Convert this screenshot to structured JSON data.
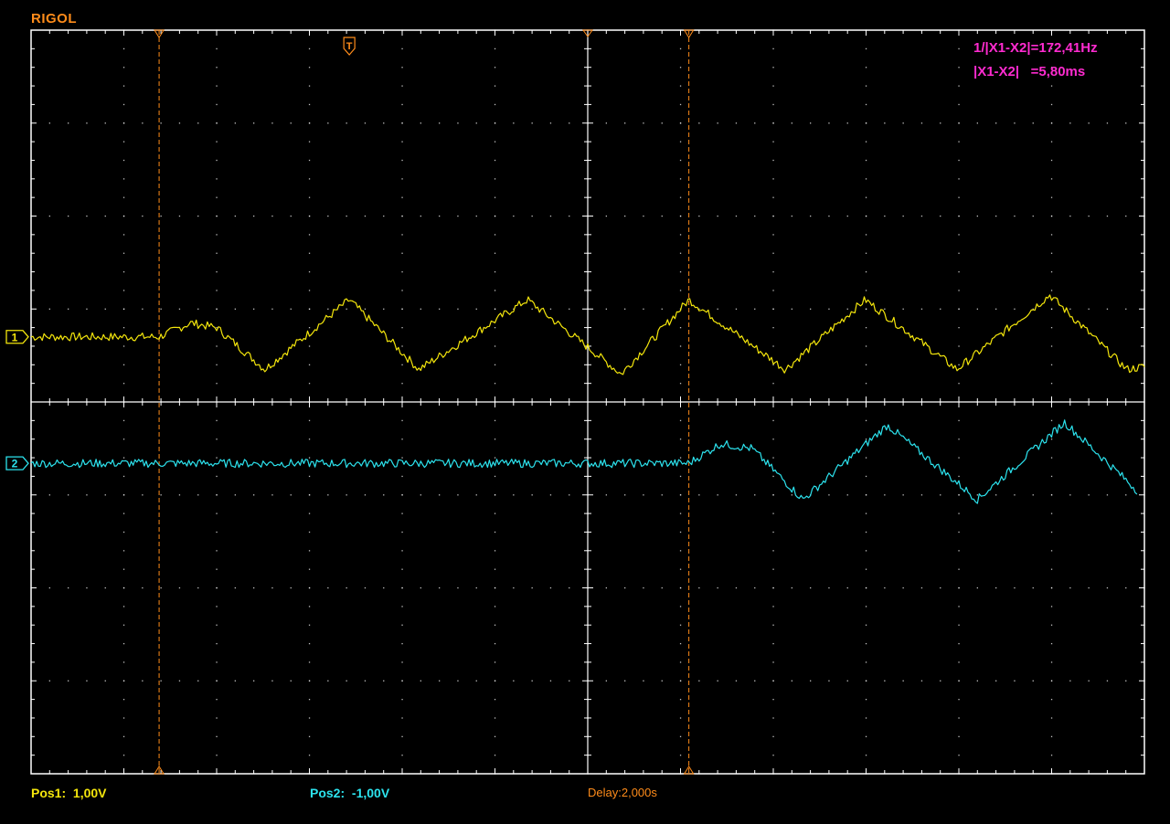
{
  "brand": "RIGOL",
  "readouts": {
    "frequency": "1/|X1-X2|=172,41Hz",
    "delta": "|X1-X2|   =5,80ms"
  },
  "status": {
    "pos1": "Pos1:  1,00V",
    "pos2": "Pos2:  -1,00V",
    "delay": "Delay:2,000s"
  },
  "markers": {
    "ch1": "1",
    "ch2": "2",
    "trigger": "T"
  },
  "colors": {
    "background": "#000000",
    "grid": "#ffffff",
    "ch1": "#f4e60c",
    "ch2": "#2ce3ee",
    "cursor": "#ff8c1a",
    "measure": "#ff2bd0"
  },
  "chart_data": {
    "type": "line",
    "title": "",
    "xlabel": "",
    "ylabel": "",
    "xlim": [
      0,
      12
    ],
    "ylim": [
      -4,
      4
    ],
    "grid": true,
    "units": {
      "x": "div",
      "y": "div"
    },
    "cursors_x": [
      1.38,
      7.09
    ],
    "trigger_x": 3.43,
    "series": [
      {
        "name": "1",
        "color": "#f4e60c",
        "x": [
          0.0,
          1.38,
          1.72,
          2.0,
          2.52,
          3.43,
          4.18,
          5.35,
          6.05,
          6.36,
          7.09,
          8.13,
          8.99,
          9.98,
          10.98,
          11.81,
          12.0
        ],
        "y": [
          0.7,
          0.7,
          0.85,
          0.8,
          0.35,
          1.1,
          0.35,
          1.1,
          0.55,
          0.3,
          1.1,
          0.35,
          1.1,
          0.35,
          1.15,
          0.35,
          0.38
        ]
      },
      {
        "name": "2",
        "color": "#2ce3ee",
        "x": [
          0.0,
          7.09,
          7.43,
          7.77,
          8.32,
          9.23,
          10.2,
          11.14,
          11.92
        ],
        "y": [
          -0.66,
          -0.66,
          -0.45,
          -0.5,
          -1.05,
          -0.25,
          -1.05,
          -0.22,
          -0.95
        ]
      }
    ],
    "ch1_ref_level": 0.7,
    "ch2_ref_level": -0.66
  }
}
